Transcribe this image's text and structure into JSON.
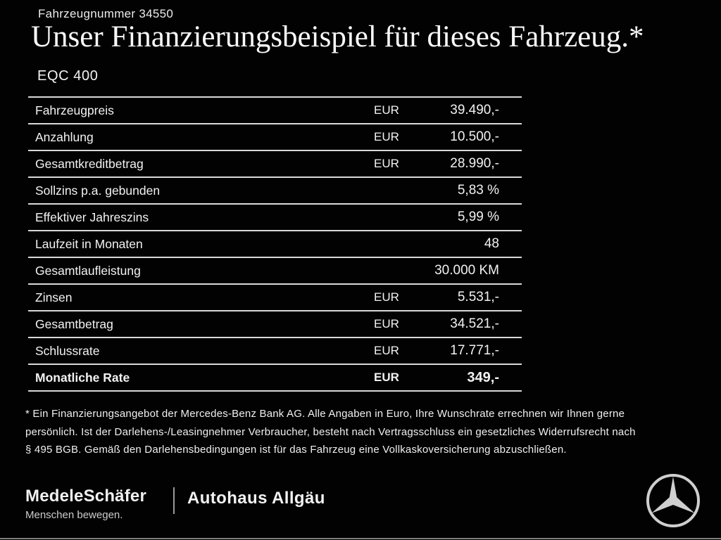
{
  "header": {
    "vehicle_number": "Fahrzeugnummer 34550"
  },
  "title": "Unser Finanzierungsbeispiel für dieses Fahrzeug.*",
  "model": "EQC 400",
  "finance_table": {
    "rows": [
      {
        "label": "Fahrzeugpreis",
        "currency": "EUR",
        "value": "39.490,-",
        "bold": false
      },
      {
        "label": "Anzahlung",
        "currency": "EUR",
        "value": "10.500,-",
        "bold": false
      },
      {
        "label": "Gesamtkreditbetrag",
        "currency": "EUR",
        "value": "28.990,-",
        "bold": false
      },
      {
        "label": "Sollzins p.a. gebunden",
        "currency": "",
        "value": "5,83 %",
        "bold": false
      },
      {
        "label": "Effektiver Jahreszins",
        "currency": "",
        "value": "5,99 %",
        "bold": false
      },
      {
        "label": "Laufzeit in Monaten",
        "currency": "",
        "value": "48",
        "bold": false
      },
      {
        "label": "Gesamtlaufleistung",
        "currency": "",
        "value": "30.000 KM",
        "bold": false
      },
      {
        "label": "Zinsen",
        "currency": "EUR",
        "value": "5.531,-",
        "bold": false
      },
      {
        "label": "Gesamtbetrag",
        "currency": "EUR",
        "value": "34.521,-",
        "bold": false
      },
      {
        "label": "Schlussrate",
        "currency": "EUR",
        "value": "17.771,-",
        "bold": false
      },
      {
        "label": "Monatliche Rate",
        "currency": "EUR",
        "value": "349,-",
        "bold": true
      }
    ]
  },
  "footnote_lines": [
    "* Ein Finanzierungsangebot der Mercedes-Benz Bank AG. Alle Angaben in Euro, Ihre Wunschrate errechnen wir Ihnen gerne",
    "persönlich. Ist der Darlehens-/Leasingnehmer Verbraucher, besteht nach Vertragsschluss ein gesetzliches Widerrufsrecht nach",
    "§ 495 BGB. Gemäß den Darlehensbedingungen ist für das Fahrzeug eine Vollkaskoversicherung abzuschließen."
  ],
  "footer": {
    "dealer_name": "MedeleSchäfer",
    "dealer_tagline": "Menschen bewegen.",
    "dealer_partner": "Autohaus Allgäu",
    "brand_icon": "mercedes-star-icon"
  },
  "colors": {
    "background": "#020202",
    "text": "#f2f2f2",
    "table_line": "#d9d9d9",
    "logo_gray": "#cfcfcf"
  }
}
